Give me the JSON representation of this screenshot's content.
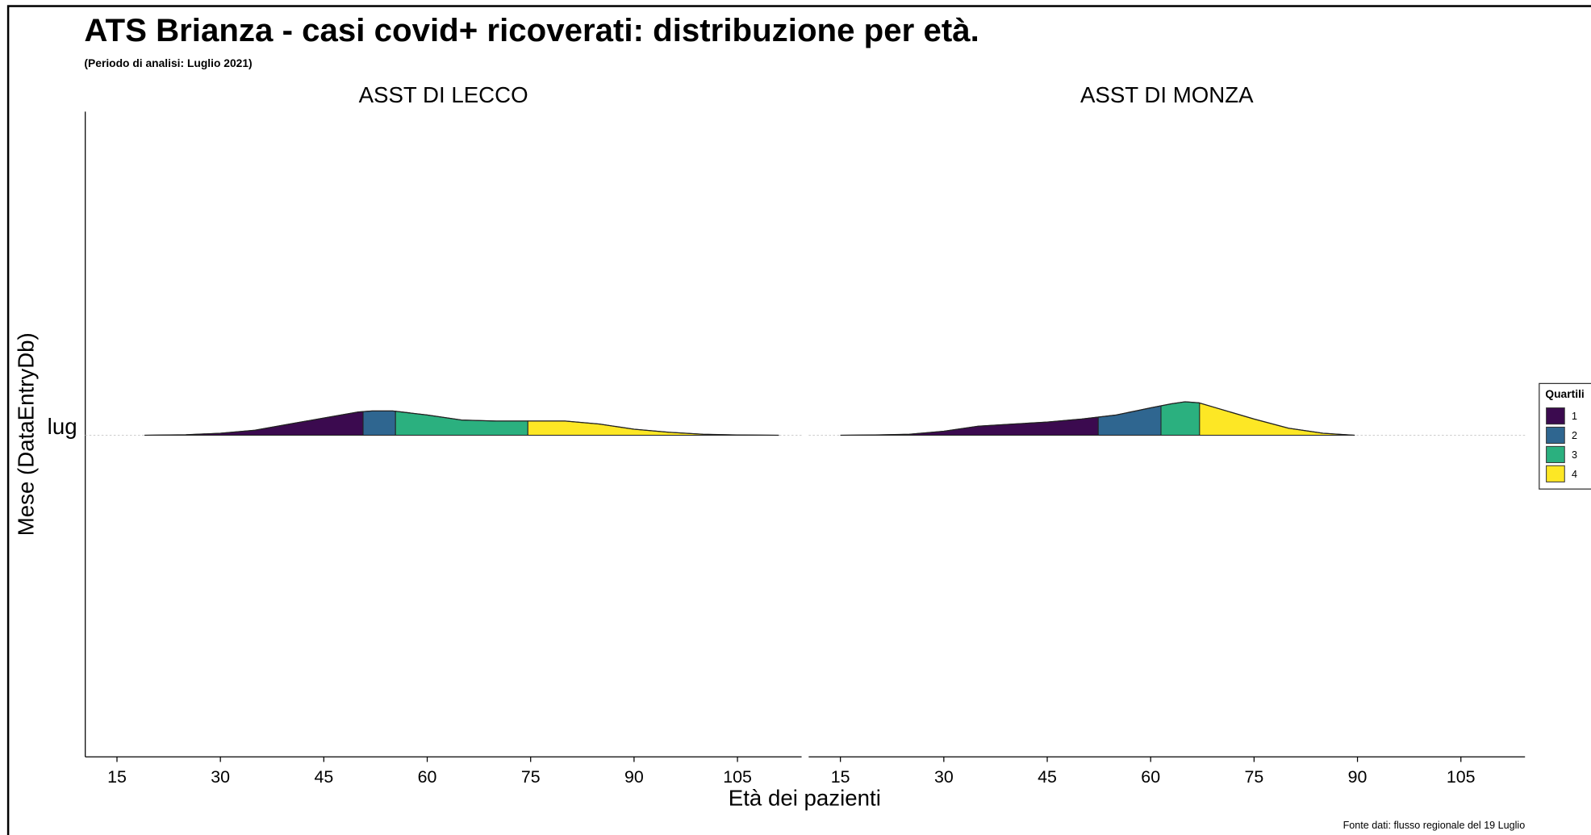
{
  "title": "ATS Brianza - casi covid+ ricoverati: distribuzione per età.",
  "subtitle": "(Periodo di analisi: Luglio 2021)",
  "x_label": "Età dei pazienti",
  "y_label": "Mese (DataEntryDb)",
  "y_categories": [
    "lug"
  ],
  "caption": "Fonte dati: flusso regionale del 19 Luglio",
  "legend": {
    "title": "Quartili",
    "labels": [
      "1",
      "2",
      "3",
      "4"
    ],
    "colors": [
      "#3b0a4f",
      "#2f6690",
      "#2bb07f",
      "#fde725"
    ],
    "position": "right"
  },
  "chart_data": [
    {
      "type": "density_ridgeline",
      "title": "ASST DI LECCO",
      "x": [
        19,
        25,
        30,
        35,
        40,
        45,
        50,
        52,
        55,
        60,
        65,
        70,
        75,
        80,
        85,
        90,
        95,
        100,
        105,
        111
      ],
      "values": [
        0,
        0.5,
        2,
        5,
        11,
        17,
        23,
        24,
        24,
        20,
        15,
        14,
        14,
        14,
        11,
        6,
        3,
        1,
        0.3,
        0
      ],
      "quantiles": [
        50.7,
        55.4,
        74.6
      ],
      "xlim": [
        10.4,
        114.3
      ],
      "xticks": [
        15,
        30,
        45,
        60,
        75,
        90,
        105
      ]
    },
    {
      "type": "density_ridgeline",
      "title": "ASST DI MONZA",
      "x": [
        15,
        20,
        25,
        30,
        35,
        40,
        45,
        50,
        55,
        60,
        63,
        65,
        67,
        70,
        75,
        80,
        85,
        89.6
      ],
      "values": [
        0,
        0.3,
        1,
        4,
        9,
        11,
        13,
        16,
        20,
        27,
        31,
        33,
        32,
        26,
        16,
        7,
        2,
        0
      ],
      "quantiles": [
        52.4,
        61.5,
        67.1
      ],
      "xlim": [
        10.4,
        114.3
      ],
      "xticks": [
        15,
        30,
        45,
        60,
        75,
        90,
        105
      ]
    }
  ]
}
